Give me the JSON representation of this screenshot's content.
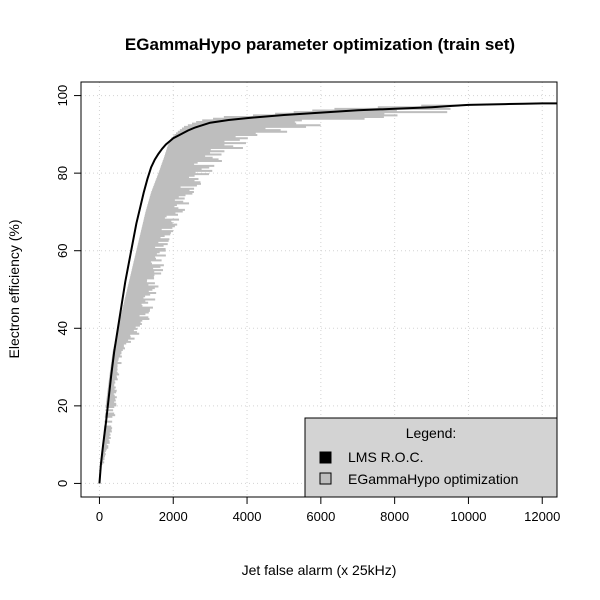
{
  "chart_data": {
    "type": "line",
    "title": "EGammaHypo parameter optimization (train set)",
    "xlabel": "Jet false alarm (x 25kHz)",
    "ylabel": "Electron efficiency (%)",
    "xlim": [
      -500,
      12400
    ],
    "ylim": [
      -3.5,
      103.5
    ],
    "x_ticks": [
      0,
      2000,
      4000,
      6000,
      8000,
      10000,
      12000
    ],
    "y_ticks": [
      0,
      20,
      40,
      60,
      80,
      100
    ],
    "grid": true,
    "legend": {
      "title": "Legend:",
      "placement": "bottom-right",
      "entries": [
        {
          "name": "LMS R.O.C.",
          "color": "#000000"
        },
        {
          "name": "EGammaHypo optimization",
          "color": "#bebebe"
        }
      ]
    },
    "series": [
      {
        "name": "LMS R.O.C.",
        "color": "#000000",
        "x": [
          0,
          40,
          100,
          180,
          250,
          320,
          400,
          500,
          600,
          700,
          800,
          900,
          1000,
          1100,
          1200,
          1300,
          1400,
          1500,
          1600,
          1700,
          1800,
          1900,
          2000,
          2200,
          2400,
          2600,
          2800,
          3000,
          3500,
          4000,
          5000,
          6000,
          7000,
          8000,
          9000,
          9500,
          10000,
          10500,
          11000,
          11500,
          12000,
          12400
        ],
        "y": [
          0,
          5,
          10,
          16,
          22,
          28,
          34,
          40,
          46,
          52,
          57,
          62,
          67,
          71,
          75,
          78.5,
          81.5,
          83.5,
          85,
          86.3,
          87.4,
          88.2,
          89,
          90,
          91,
          91.8,
          92.4,
          93,
          93.7,
          94.2,
          95,
          95.6,
          96.2,
          96.6,
          97,
          97.3,
          97.6,
          97.7,
          97.8,
          97.9,
          98,
          98
        ]
      },
      {
        "name": "EGammaHypo optimization",
        "color": "#bebebe",
        "envelope": {
          "y": [
            5,
            14,
            20,
            27,
            34,
            40,
            46,
            52,
            58,
            64,
            70,
            75,
            80,
            84,
            87,
            89,
            90.5,
            92,
            93.5,
            94.5,
            95,
            96.5,
            97.5
          ],
          "xmin": [
            40,
            120,
            170,
            260,
            360,
            500,
            650,
            800,
            950,
            1100,
            1250,
            1400,
            1600,
            1750,
            1850,
            1950,
            2100,
            2300,
            2700,
            3400,
            4400,
            6200,
            9000
          ],
          "xmax": [
            120,
            380,
            460,
            520,
            700,
            1300,
            1500,
            1650,
            1800,
            2000,
            2300,
            2700,
            3000,
            3500,
            4000,
            4500,
            5200,
            5800,
            6800,
            8200,
            9200,
            9700,
            10000
          ]
        }
      }
    ]
  }
}
